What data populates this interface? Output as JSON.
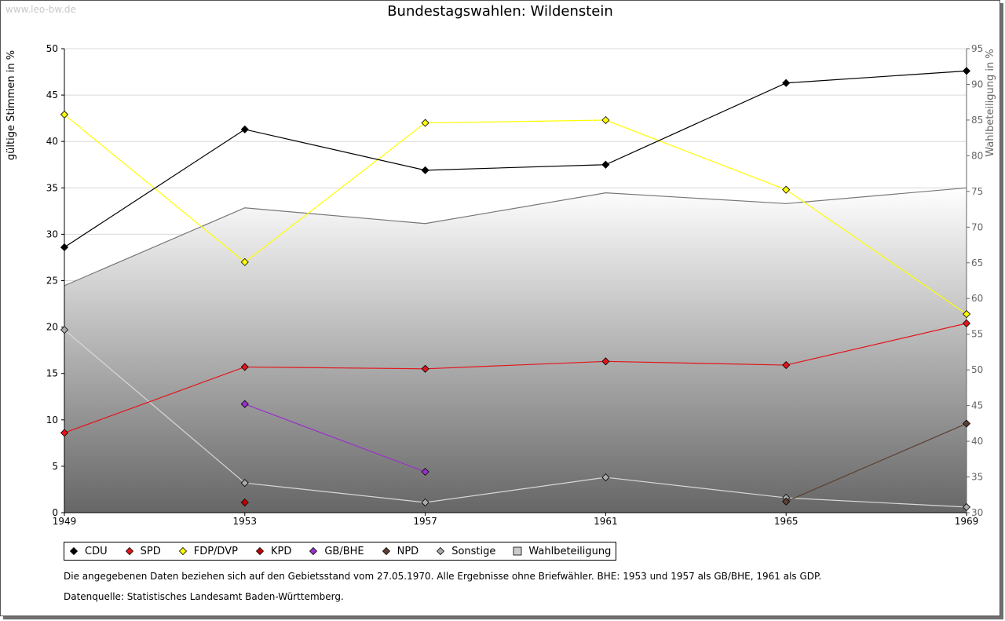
{
  "watermark": "www.leo-bw.de",
  "title": "Bundestagswahlen: Wildenstein",
  "notes": {
    "line1": "Die angegebenen Daten beziehen sich auf den Gebietsstand vom 27.05.1970. Alle Ergebnisse ohne Briefwähler. BHE: 1953 und 1957 als GB/BHE, 1961 als GDP.",
    "line2": "Datenquelle: Statistisches Landesamt Baden-Württemberg."
  },
  "chart_data": {
    "type": "line",
    "title": "Bundestagswahlen: Wildenstein",
    "x": [
      1949,
      1953,
      1957,
      1961,
      1965,
      1969
    ],
    "x_tick_labels": [
      "1949",
      "1953",
      "1957",
      "1961",
      "1965",
      "1969"
    ],
    "ylabel": "gültige Stimmen in %",
    "ylim": [
      0,
      50
    ],
    "y_ticks": [
      "0",
      "5",
      "10",
      "15",
      "20",
      "25",
      "30",
      "35",
      "40",
      "45",
      "50"
    ],
    "y2label": "Wahlbeteiligung in %",
    "y2lim": [
      30,
      95
    ],
    "y2_ticks": [
      "30",
      "35",
      "40",
      "45",
      "50",
      "55",
      "60",
      "65",
      "70",
      "75",
      "80",
      "85",
      "90",
      "95"
    ],
    "grid": true,
    "legend_position": "bottom",
    "series": [
      {
        "name": "CDU",
        "color": "#000000",
        "values": [
          28.6,
          41.3,
          36.9,
          37.5,
          46.3,
          47.6
        ]
      },
      {
        "name": "SPD",
        "color": "#e3151b",
        "values": [
          8.6,
          15.7,
          15.5,
          16.3,
          15.9,
          20.4
        ]
      },
      {
        "name": "FDP/DVP",
        "color": "#ffff00",
        "values": [
          42.9,
          27.0,
          42.0,
          42.3,
          34.8,
          21.4
        ]
      },
      {
        "name": "KPD",
        "color": "#c00000",
        "values": [
          null,
          1.1,
          null,
          null,
          null,
          null
        ]
      },
      {
        "name": "GB/BHE",
        "color": "#9932cc",
        "values": [
          null,
          11.7,
          4.4,
          null,
          null,
          null
        ]
      },
      {
        "name": "NPD",
        "color": "#5c4033",
        "values": [
          null,
          null,
          null,
          null,
          1.2,
          9.6
        ]
      },
      {
        "name": "Sonstige",
        "color": "#aaaaaa",
        "values": [
          19.7,
          3.2,
          1.1,
          3.8,
          1.6,
          0.6
        ]
      }
    ],
    "turnout": {
      "name": "Wahlbeteiligung",
      "axis": "right",
      "values": [
        61.8,
        72.7,
        70.5,
        74.8,
        73.3,
        75.5
      ]
    }
  }
}
